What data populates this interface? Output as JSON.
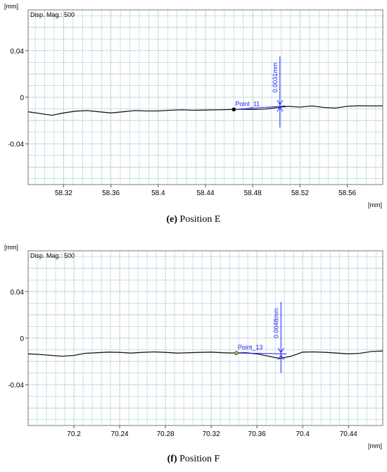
{
  "chart_data": [
    {
      "type": "line",
      "unit_label": "[mm]",
      "xlabel": "[mm]",
      "display_mag": "Disp. Mag.: 500",
      "xlim": [
        58.29,
        58.59
      ],
      "ylim": [
        -0.075,
        0.075
      ],
      "x_ticks": [
        58.32,
        58.36,
        58.4,
        58.44,
        58.48,
        58.52,
        58.56
      ],
      "x_tick_labels": [
        "58.32",
        "58.36",
        "58.4",
        "58.44",
        "58.48",
        "58.52",
        "58.56"
      ],
      "y_ticks": [
        0.04,
        0,
        -0.04
      ],
      "y_tick_labels": [
        "0.04",
        "0",
        "-0.04"
      ],
      "grid": true,
      "series": [
        {
          "x": [
            58.29,
            58.3,
            58.31,
            58.32,
            58.33,
            58.34,
            58.35,
            58.36,
            58.37,
            58.38,
            58.39,
            58.4,
            58.41,
            58.42,
            58.43,
            58.44,
            58.45,
            58.46,
            58.47,
            58.48,
            58.49,
            58.5,
            58.51,
            58.52,
            58.53,
            58.54,
            58.55,
            58.56,
            58.57,
            58.58,
            58.59
          ],
          "y": [
            -0.0125,
            -0.014,
            -0.0155,
            -0.0135,
            -0.012,
            -0.0115,
            -0.0125,
            -0.0135,
            -0.0125,
            -0.0115,
            -0.0118,
            -0.0118,
            -0.0112,
            -0.0108,
            -0.0112,
            -0.011,
            -0.0108,
            -0.0106,
            -0.0103,
            -0.0106,
            -0.0102,
            -0.009,
            -0.0078,
            -0.0085,
            -0.0075,
            -0.0088,
            -0.0093,
            -0.0078,
            -0.0073,
            -0.0075,
            -0.0075
          ]
        }
      ],
      "annotation": {
        "point_label": "Point_11",
        "point_x": 58.464,
        "point_y": -0.0105,
        "point_color": "#000000",
        "measure_x": 58.503,
        "measure_text": "0.0031mm",
        "measure_top": 0.035,
        "measure_bottom": -0.026,
        "level_y": -0.0075
      },
      "caption_letter": "(e)",
      "caption_text": " Position E"
    },
    {
      "type": "line",
      "unit_label": "[mm]",
      "xlabel": "[mm]",
      "display_mag": "Disp. Mag.: 500",
      "xlim": [
        70.16,
        70.47
      ],
      "ylim": [
        -0.075,
        0.075
      ],
      "x_ticks": [
        70.2,
        70.24,
        70.28,
        70.32,
        70.36,
        70.4,
        70.44
      ],
      "x_tick_labels": [
        "70.2",
        "70.24",
        "70.28",
        "70.32",
        "70.36",
        "70.4",
        "70.44"
      ],
      "y_ticks": [
        0.04,
        0,
        -0.04
      ],
      "y_tick_labels": [
        "0.04",
        "0",
        "-0.04"
      ],
      "grid": true,
      "series": [
        {
          "x": [
            70.16,
            70.17,
            70.18,
            70.19,
            70.2,
            70.21,
            70.22,
            70.23,
            70.24,
            70.25,
            70.26,
            70.27,
            70.28,
            70.29,
            70.3,
            70.31,
            70.32,
            70.33,
            70.34,
            70.35,
            70.36,
            70.37,
            70.38,
            70.39,
            70.4,
            70.41,
            70.42,
            70.43,
            70.44,
            70.45,
            70.46,
            70.47
          ],
          "y": [
            -0.0135,
            -0.014,
            -0.0148,
            -0.0155,
            -0.0148,
            -0.013,
            -0.0125,
            -0.012,
            -0.0122,
            -0.0128,
            -0.0122,
            -0.0118,
            -0.0122,
            -0.0128,
            -0.0125,
            -0.0122,
            -0.012,
            -0.0125,
            -0.0128,
            -0.0125,
            -0.0135,
            -0.0155,
            -0.0175,
            -0.0155,
            -0.012,
            -0.0118,
            -0.0122,
            -0.0128,
            -0.0135,
            -0.013,
            -0.0115,
            -0.011
          ]
        }
      ],
      "annotation": {
        "point_label": "Point_13",
        "point_x": 70.342,
        "point_y": -0.0128,
        "point_color": "#a0c020",
        "measure_x": 70.381,
        "measure_text": "0.0048mm",
        "measure_top": 0.031,
        "measure_bottom": -0.03,
        "level_y": -0.0135
      },
      "caption_letter": "(f)",
      "caption_text": " Position F"
    }
  ],
  "colors": {
    "grid_major": "#c8c8c8",
    "grid_minor": "#9fd3da",
    "line": "#1a1a1a",
    "annotation": "#1a1aff"
  }
}
